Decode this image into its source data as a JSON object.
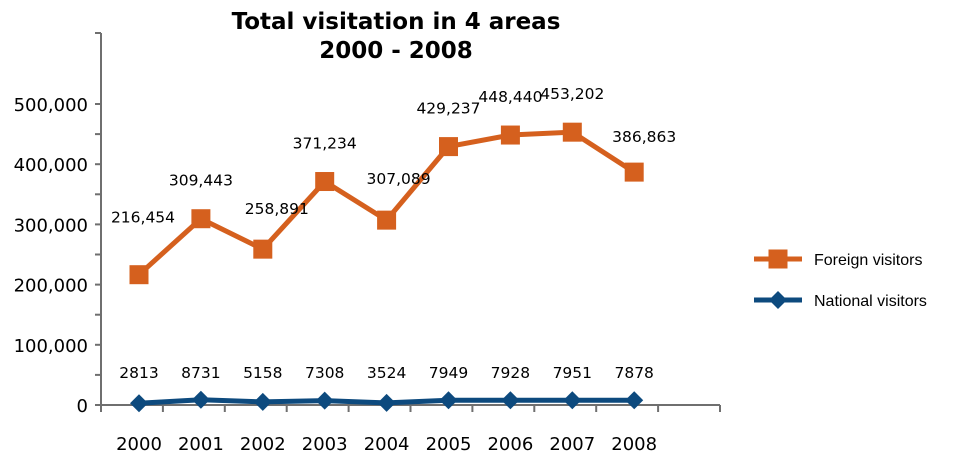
{
  "chart_data": {
    "type": "line",
    "title": [
      "Total visitation in 4 areas",
      "2000 - 2008"
    ],
    "categories": [
      "2000",
      "2001",
      "2002",
      "2003",
      "2004",
      "2005",
      "2006",
      "2007",
      "2008"
    ],
    "y_ticks": [
      "0",
      "100,000",
      "200,000",
      "300,000",
      "400,000",
      "500,000"
    ],
    "ylim": [
      0,
      500000
    ],
    "legend_position": "right",
    "grid": false,
    "series": [
      {
        "name": "Foreign visitors",
        "color": "#d5601e",
        "marker": "square",
        "values": [
          216454,
          309443,
          258891,
          371234,
          307089,
          429237,
          448440,
          453202,
          386863
        ],
        "labels": [
          "216,454",
          "309,443",
          "258,891",
          "371,234",
          "307,089",
          "429,237",
          "448,440",
          "453,202",
          "386,863"
        ]
      },
      {
        "name": "National visitors",
        "color": "#0d4a7e",
        "marker": "diamond",
        "values": [
          2813,
          8731,
          5158,
          7308,
          3524,
          7949,
          7928,
          7951,
          7878
        ],
        "labels": [
          "2813",
          "8731",
          "5158",
          "7308",
          "3524",
          "7949",
          "7928",
          "7951",
          "7878"
        ]
      }
    ]
  }
}
